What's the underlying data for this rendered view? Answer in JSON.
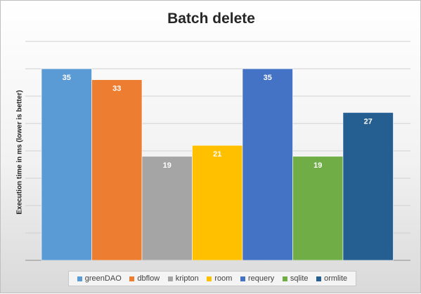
{
  "chart_data": {
    "type": "bar",
    "title": "Batch delete",
    "ylabel": "Execution time in ms (lower is better)",
    "xlabel": "",
    "ylim": [
      0,
      40
    ],
    "grid": true,
    "legend_position": "bottom",
    "series": [
      {
        "name": "greenDAO",
        "value": 35,
        "color": "#5b9bd5"
      },
      {
        "name": "dbflow",
        "value": 33,
        "color": "#ed7d31"
      },
      {
        "name": "kripton",
        "value": 19,
        "color": "#a5a5a5"
      },
      {
        "name": "room",
        "value": 21,
        "color": "#ffc000"
      },
      {
        "name": "requery",
        "value": 35,
        "color": "#4472c4"
      },
      {
        "name": "sqlite",
        "value": 19,
        "color": "#70ad47"
      },
      {
        "name": "ormlite",
        "value": 27,
        "color": "#255e91"
      }
    ]
  }
}
